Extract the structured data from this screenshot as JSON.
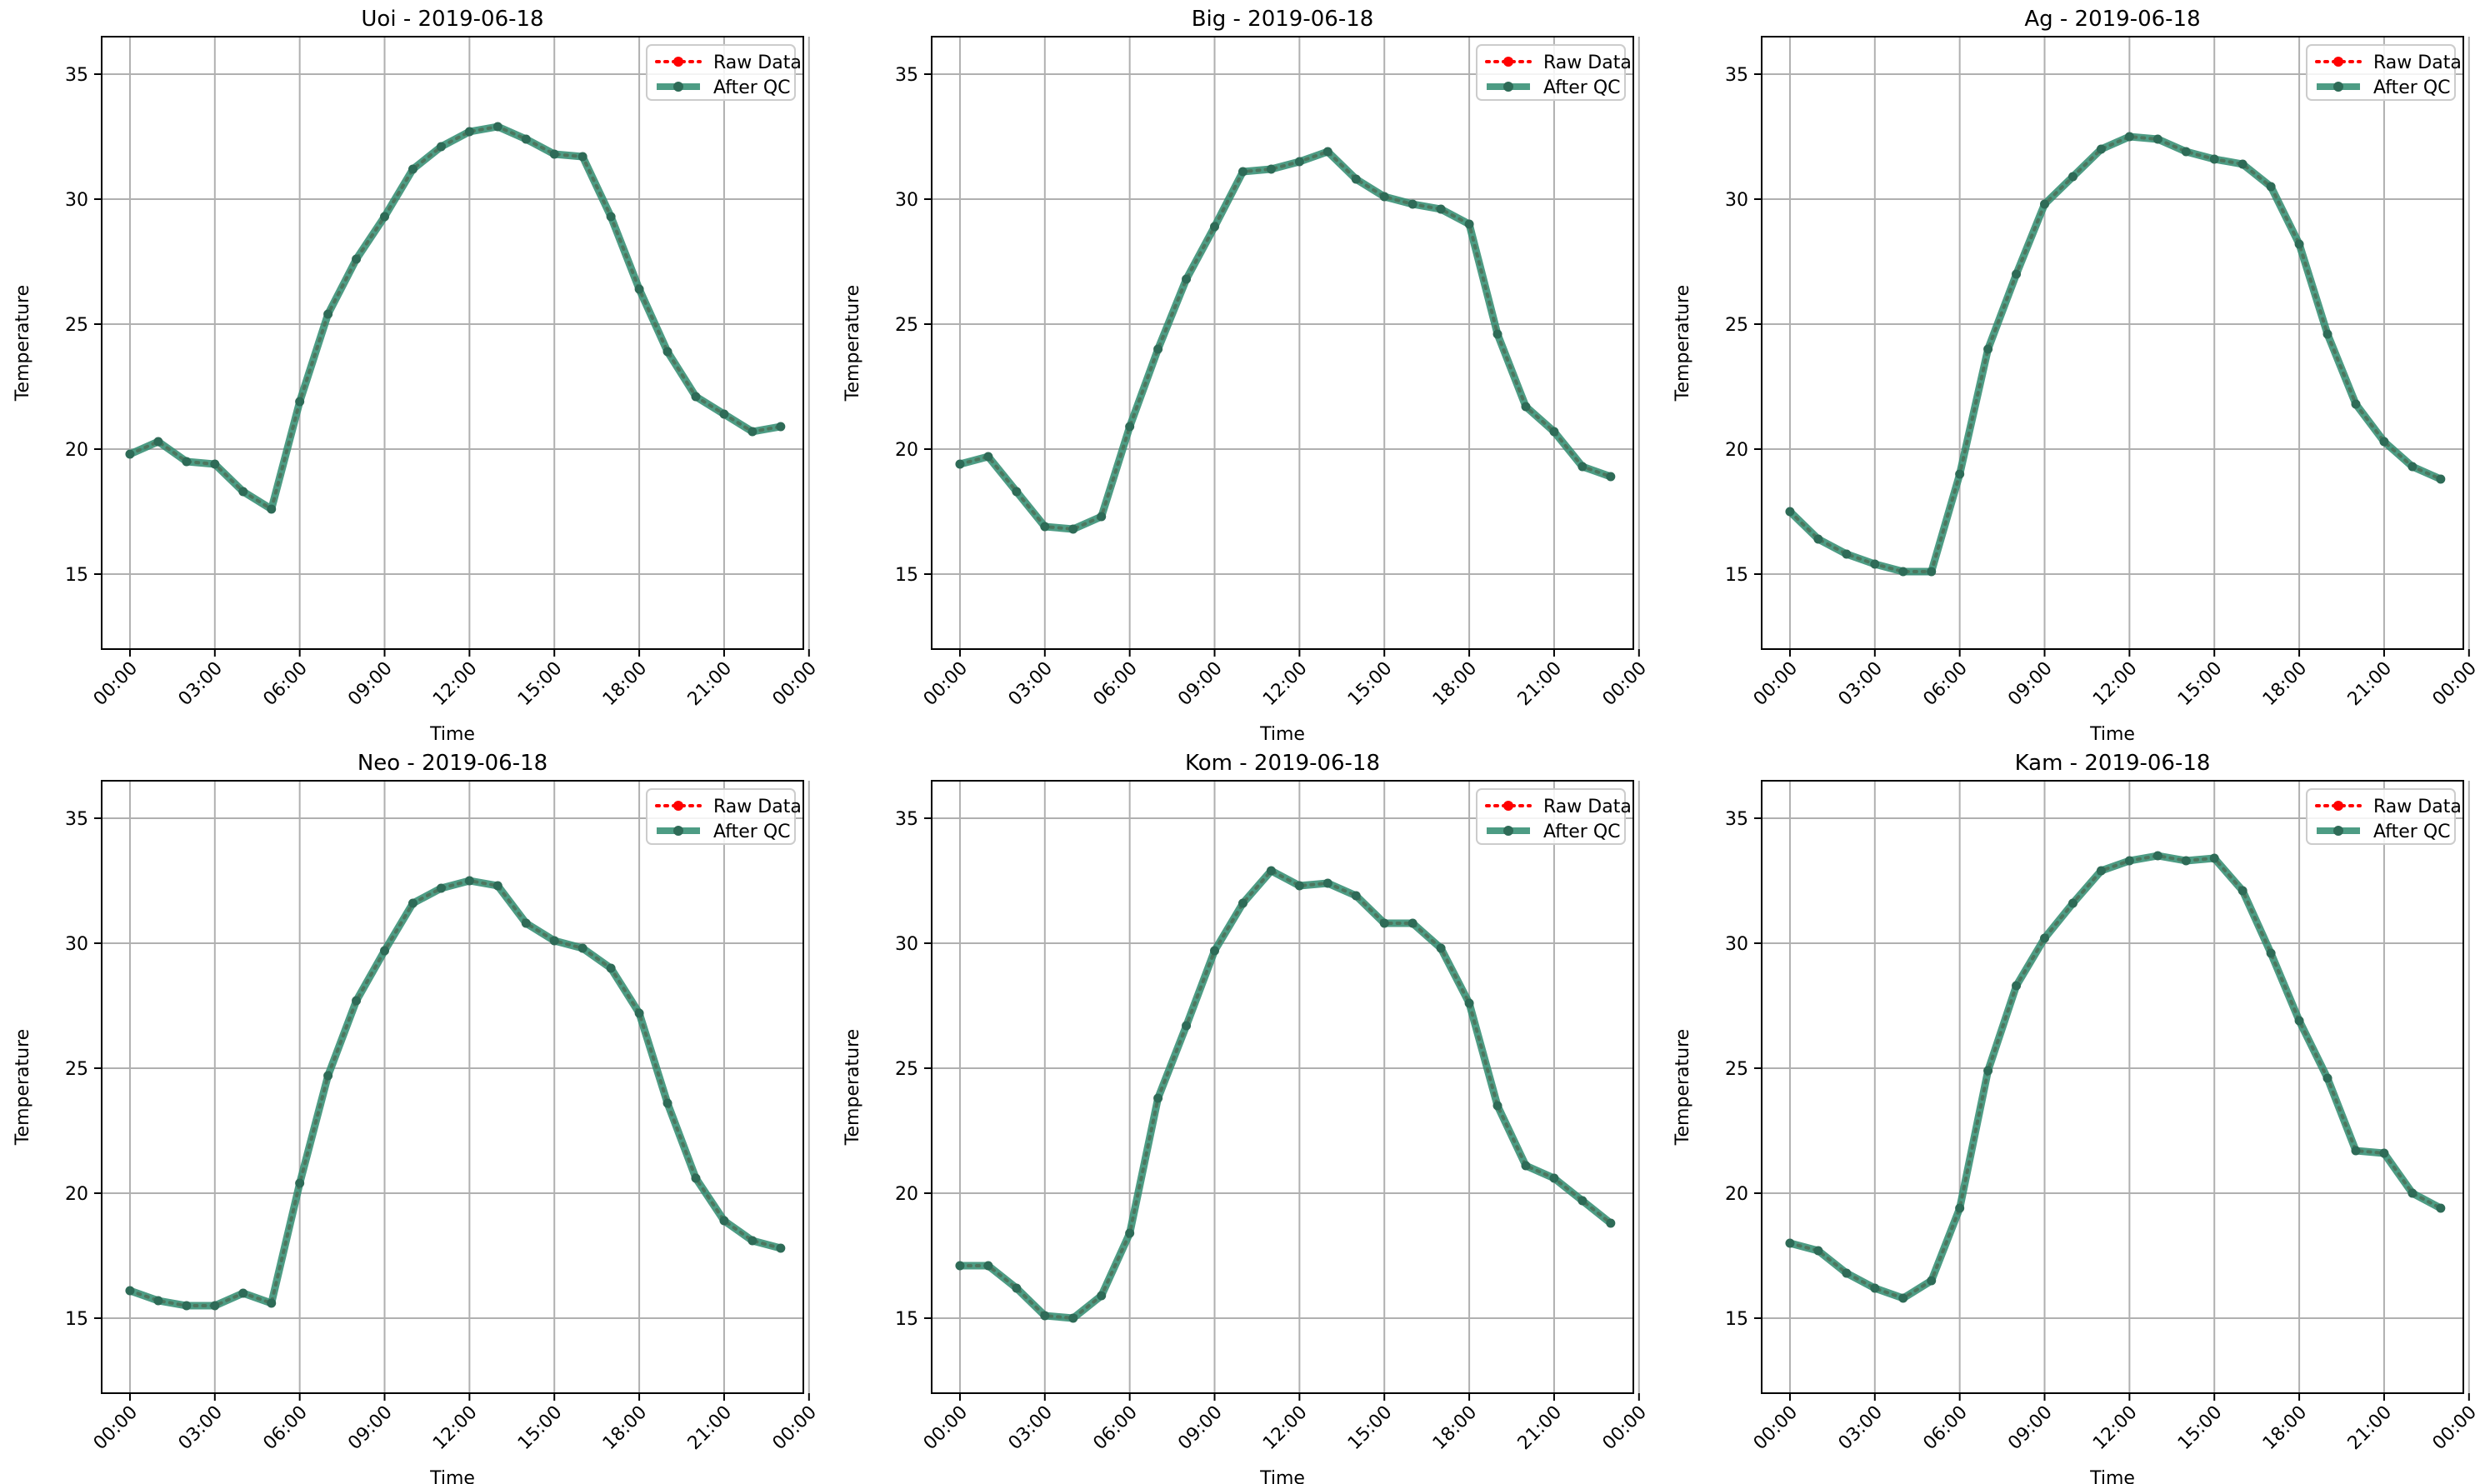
{
  "colors": {
    "raw": "#ff0000",
    "qc": "#2e8b6e",
    "marker_qc": "#2e6b57",
    "grid": "#b0b0b0"
  },
  "legend": {
    "raw_label": "Raw Data",
    "qc_label": "After QC"
  },
  "chart_data": [
    {
      "type": "line",
      "title": "Uoi - 2019-06-18",
      "xlabel": "Time",
      "ylabel": "Temperature",
      "xlim": [
        -1.0,
        23.8
      ],
      "ylim": [
        12,
        36.5
      ],
      "xticks": [
        0,
        3,
        6,
        9,
        12,
        15,
        18,
        21,
        24
      ],
      "xtick_labels": [
        "00:00",
        "03:00",
        "06:00",
        "09:00",
        "12:00",
        "15:00",
        "18:00",
        "21:00",
        "00:00"
      ],
      "yticks": [
        15,
        20,
        25,
        30,
        35
      ],
      "legend_position": "upper right",
      "grid": true,
      "x": [
        0,
        1,
        2,
        3,
        4,
        5,
        6,
        7,
        8,
        9,
        10,
        11,
        12,
        13,
        14,
        15,
        16,
        17,
        18,
        19,
        20,
        21,
        22,
        23
      ],
      "series": [
        {
          "name": "Raw Data",
          "values": [
            19.8,
            20.3,
            19.5,
            19.4,
            18.3,
            17.6,
            21.9,
            25.4,
            27.6,
            29.3,
            31.2,
            32.1,
            32.7,
            32.9,
            32.4,
            31.8,
            31.7,
            29.3,
            26.4,
            23.9,
            22.1,
            21.4,
            20.7,
            20.9
          ]
        },
        {
          "name": "After QC",
          "values": [
            19.8,
            20.3,
            19.5,
            19.4,
            18.3,
            17.6,
            21.9,
            25.4,
            27.6,
            29.3,
            31.2,
            32.1,
            32.7,
            32.9,
            32.4,
            31.8,
            31.7,
            29.3,
            26.4,
            23.9,
            22.1,
            21.4,
            20.7,
            20.9
          ]
        }
      ]
    },
    {
      "type": "line",
      "title": "Big - 2019-06-18",
      "xlabel": "Time",
      "ylabel": "Temperature",
      "xlim": [
        -1.0,
        23.8
      ],
      "ylim": [
        12,
        36.5
      ],
      "xticks": [
        0,
        3,
        6,
        9,
        12,
        15,
        18,
        21,
        24
      ],
      "xtick_labels": [
        "00:00",
        "03:00",
        "06:00",
        "09:00",
        "12:00",
        "15:00",
        "18:00",
        "21:00",
        "00:00"
      ],
      "yticks": [
        15,
        20,
        25,
        30,
        35
      ],
      "legend_position": "upper right",
      "grid": true,
      "x": [
        0,
        1,
        2,
        3,
        4,
        5,
        6,
        7,
        8,
        9,
        10,
        11,
        12,
        13,
        14,
        15,
        16,
        17,
        18,
        19,
        20,
        21,
        22,
        23
      ],
      "series": [
        {
          "name": "Raw Data",
          "values": [
            19.4,
            19.7,
            18.3,
            16.9,
            16.8,
            17.3,
            20.9,
            24.0,
            26.8,
            28.9,
            31.1,
            31.2,
            31.5,
            31.9,
            30.8,
            30.1,
            29.8,
            29.6,
            29.0,
            24.6,
            21.7,
            20.7,
            19.3,
            18.9
          ]
        },
        {
          "name": "After QC",
          "values": [
            19.4,
            19.7,
            18.3,
            16.9,
            16.8,
            17.3,
            20.9,
            24.0,
            26.8,
            28.9,
            31.1,
            31.2,
            31.5,
            31.9,
            30.8,
            30.1,
            29.8,
            29.6,
            29.0,
            24.6,
            21.7,
            20.7,
            19.3,
            18.9
          ]
        }
      ]
    },
    {
      "type": "line",
      "title": "Ag - 2019-06-18",
      "xlabel": "Time",
      "ylabel": "Temperature",
      "xlim": [
        -1.0,
        23.8
      ],
      "ylim": [
        12,
        36.5
      ],
      "xticks": [
        0,
        3,
        6,
        9,
        12,
        15,
        18,
        21,
        24
      ],
      "xtick_labels": [
        "00:00",
        "03:00",
        "06:00",
        "09:00",
        "12:00",
        "15:00",
        "18:00",
        "21:00",
        "00:00"
      ],
      "yticks": [
        15,
        20,
        25,
        30,
        35
      ],
      "legend_position": "upper right",
      "grid": true,
      "x": [
        0,
        1,
        2,
        3,
        4,
        5,
        6,
        7,
        8,
        9,
        10,
        11,
        12,
        13,
        14,
        15,
        16,
        17,
        18,
        19,
        20,
        21,
        22,
        23
      ],
      "series": [
        {
          "name": "Raw Data",
          "values": [
            17.5,
            16.4,
            15.8,
            15.4,
            15.1,
            15.1,
            19.0,
            24.0,
            27.0,
            29.8,
            30.9,
            32.0,
            32.5,
            32.4,
            31.9,
            31.6,
            31.4,
            30.5,
            28.2,
            24.6,
            21.8,
            20.3,
            19.3,
            18.8
          ]
        },
        {
          "name": "After QC",
          "values": [
            17.5,
            16.4,
            15.8,
            15.4,
            15.1,
            15.1,
            19.0,
            24.0,
            27.0,
            29.8,
            30.9,
            32.0,
            32.5,
            32.4,
            31.9,
            31.6,
            31.4,
            30.5,
            28.2,
            24.6,
            21.8,
            20.3,
            19.3,
            18.8
          ]
        }
      ]
    },
    {
      "type": "line",
      "title": "Neo - 2019-06-18",
      "xlabel": "Time",
      "ylabel": "Temperature",
      "xlim": [
        -1.0,
        23.8
      ],
      "ylim": [
        12,
        36.5
      ],
      "xticks": [
        0,
        3,
        6,
        9,
        12,
        15,
        18,
        21,
        24
      ],
      "xtick_labels": [
        "00:00",
        "03:00",
        "06:00",
        "09:00",
        "12:00",
        "15:00",
        "18:00",
        "21:00",
        "00:00"
      ],
      "yticks": [
        15,
        20,
        25,
        30,
        35
      ],
      "legend_position": "upper right",
      "grid": true,
      "x": [
        0,
        1,
        2,
        3,
        4,
        5,
        6,
        7,
        8,
        9,
        10,
        11,
        12,
        13,
        14,
        15,
        16,
        17,
        18,
        19,
        20,
        21,
        22,
        23
      ],
      "series": [
        {
          "name": "Raw Data",
          "values": [
            16.1,
            15.7,
            15.5,
            15.5,
            16.0,
            15.6,
            20.4,
            24.7,
            27.7,
            29.7,
            31.6,
            32.2,
            32.5,
            32.3,
            30.8,
            30.1,
            29.8,
            29.0,
            27.2,
            23.6,
            20.6,
            18.9,
            18.1,
            17.8
          ]
        },
        {
          "name": "After QC",
          "values": [
            16.1,
            15.7,
            15.5,
            15.5,
            16.0,
            15.6,
            20.4,
            24.7,
            27.7,
            29.7,
            31.6,
            32.2,
            32.5,
            32.3,
            30.8,
            30.1,
            29.8,
            29.0,
            27.2,
            23.6,
            20.6,
            18.9,
            18.1,
            17.8
          ]
        }
      ]
    },
    {
      "type": "line",
      "title": "Kom - 2019-06-18",
      "xlabel": "Time",
      "ylabel": "Temperature",
      "xlim": [
        -1.0,
        23.8
      ],
      "ylim": [
        12,
        36.5
      ],
      "xticks": [
        0,
        3,
        6,
        9,
        12,
        15,
        18,
        21,
        24
      ],
      "xtick_labels": [
        "00:00",
        "03:00",
        "06:00",
        "09:00",
        "12:00",
        "15:00",
        "18:00",
        "21:00",
        "00:00"
      ],
      "yticks": [
        15,
        20,
        25,
        30,
        35
      ],
      "legend_position": "upper right",
      "grid": true,
      "x": [
        0,
        1,
        2,
        3,
        4,
        5,
        6,
        7,
        8,
        9,
        10,
        11,
        12,
        13,
        14,
        15,
        16,
        17,
        18,
        19,
        20,
        21,
        22,
        23
      ],
      "series": [
        {
          "name": "Raw Data",
          "values": [
            17.1,
            17.1,
            16.2,
            15.1,
            15.0,
            15.9,
            18.4,
            23.8,
            26.7,
            29.7,
            31.6,
            32.9,
            32.3,
            32.4,
            31.9,
            30.8,
            30.8,
            29.8,
            27.6,
            23.5,
            21.1,
            20.6,
            19.7,
            18.8
          ]
        },
        {
          "name": "After QC",
          "values": [
            17.1,
            17.1,
            16.2,
            15.1,
            15.0,
            15.9,
            18.4,
            23.8,
            26.7,
            29.7,
            31.6,
            32.9,
            32.3,
            32.4,
            31.9,
            30.8,
            30.8,
            29.8,
            27.6,
            23.5,
            21.1,
            20.6,
            19.7,
            18.8
          ]
        }
      ]
    },
    {
      "type": "line",
      "title": "Kam - 2019-06-18",
      "xlabel": "Time",
      "ylabel": "Temperature",
      "xlim": [
        -1.0,
        23.8
      ],
      "ylim": [
        12,
        36.5
      ],
      "xticks": [
        0,
        3,
        6,
        9,
        12,
        15,
        18,
        21,
        24
      ],
      "xtick_labels": [
        "00:00",
        "03:00",
        "06:00",
        "09:00",
        "12:00",
        "15:00",
        "18:00",
        "21:00",
        "00:00"
      ],
      "yticks": [
        15,
        20,
        25,
        30,
        35
      ],
      "legend_position": "upper right",
      "grid": true,
      "x": [
        0,
        1,
        2,
        3,
        4,
        5,
        6,
        7,
        8,
        9,
        10,
        11,
        12,
        13,
        14,
        15,
        16,
        17,
        18,
        19,
        20,
        21,
        22,
        23
      ],
      "series": [
        {
          "name": "Raw Data",
          "values": [
            18.0,
            17.7,
            16.8,
            16.2,
            15.8,
            16.5,
            19.4,
            24.9,
            28.3,
            30.2,
            31.6,
            32.9,
            33.3,
            33.5,
            33.3,
            33.4,
            32.1,
            29.6,
            26.9,
            24.6,
            21.7,
            21.6,
            20.0,
            19.4
          ]
        },
        {
          "name": "After QC",
          "values": [
            18.0,
            17.7,
            16.8,
            16.2,
            15.8,
            16.5,
            19.4,
            24.9,
            28.3,
            30.2,
            31.6,
            32.9,
            33.3,
            33.5,
            33.3,
            33.4,
            32.1,
            29.6,
            26.9,
            24.6,
            21.7,
            21.6,
            20.0,
            19.4
          ]
        }
      ]
    }
  ]
}
